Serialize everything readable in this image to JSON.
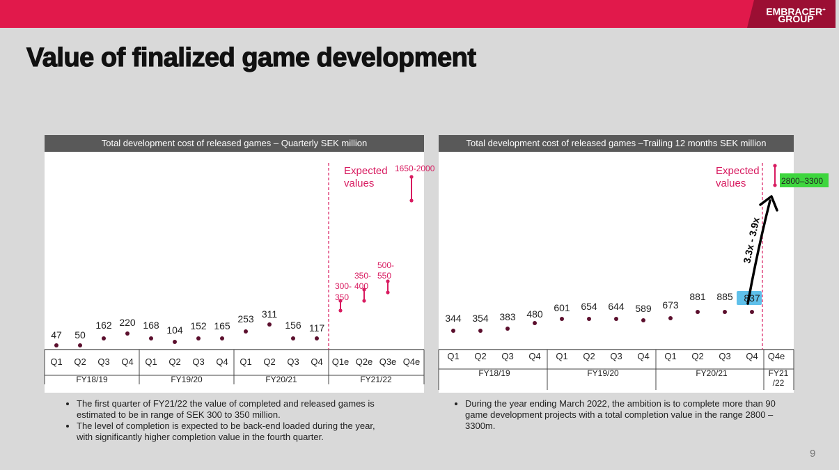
{
  "header": {
    "brand_line1": "EMBRACER",
    "brand_sup": "+",
    "brand_line2": "GROUP"
  },
  "page_title": "Value of finalized game development",
  "page_number": "9",
  "colors": {
    "accent": "#e1194b",
    "dot": "#5b0f2d",
    "expected": "#d81b60",
    "highlight_green": "#3ed63e",
    "highlight_blue": "#5fc0ea"
  },
  "chart_data": [
    {
      "type": "scatter",
      "title": "Total development cost of released games – Quarterly SEK million",
      "points": [
        {
          "q": "Q1",
          "value": 47,
          "label": "47"
        },
        {
          "q": "Q2",
          "value": 50,
          "label": "50"
        },
        {
          "q": "Q3",
          "value": 162,
          "label": "162"
        },
        {
          "q": "Q4",
          "value": 220,
          "label": "220"
        },
        {
          "q": "Q1",
          "value": 168,
          "label": "168"
        },
        {
          "q": "Q2",
          "value": 104,
          "label": "104"
        },
        {
          "q": "Q3",
          "value": 152,
          "label": "152"
        },
        {
          "q": "Q4",
          "value": 165,
          "label": "165"
        },
        {
          "q": "Q1",
          "value": 253,
          "label": "253"
        },
        {
          "q": "Q2",
          "value": 311,
          "label": "311"
        },
        {
          "q": "Q3",
          "value": 156,
          "label": "156"
        },
        {
          "q": "Q4",
          "value": 117,
          "label": "117"
        }
      ],
      "expected_ranges": [
        {
          "q": "Q1e",
          "low": 300,
          "high": 350,
          "label_line1": "300-",
          "label_line2": "350"
        },
        {
          "q": "Q2e",
          "low": 350,
          "high": 400,
          "label_line1": "350-",
          "label_line2": "400"
        },
        {
          "q": "Q3e",
          "low": 500,
          "high": 550,
          "label_line1": "500-",
          "label_line2": "550"
        },
        {
          "q": "Q4e",
          "low": 1650,
          "high": 2000,
          "label_line1": "1650-2000",
          "label_line2": ""
        }
      ],
      "expected_label_line1": "Expected",
      "expected_label_line2": "values",
      "years": [
        "FY18/19",
        "FY19/20",
        "FY20/21",
        "FY21/22"
      ]
    },
    {
      "type": "scatter",
      "title": "Total development cost of released games –Trailing 12 months SEK million",
      "points": [
        {
          "q": "Q1",
          "value": 344,
          "label": "344"
        },
        {
          "q": "Q2",
          "value": 354,
          "label": "354"
        },
        {
          "q": "Q3",
          "value": 383,
          "label": "383"
        },
        {
          "q": "Q4",
          "value": 480,
          "label": "480"
        },
        {
          "q": "Q1",
          "value": 601,
          "label": "601"
        },
        {
          "q": "Q2",
          "value": 654,
          "label": "654"
        },
        {
          "q": "Q3",
          "value": 644,
          "label": "644"
        },
        {
          "q": "Q4",
          "value": 589,
          "label": "589"
        },
        {
          "q": "Q1",
          "value": 673,
          "label": "673"
        },
        {
          "q": "Q2",
          "value": 881,
          "label": "881"
        },
        {
          "q": "Q3",
          "value": 885,
          "label": "885"
        },
        {
          "q": "Q4",
          "value": 837,
          "label": "837"
        }
      ],
      "expected_range": {
        "q": "Q4e",
        "low": 2800,
        "high": 3300,
        "label": "2800–3300"
      },
      "expected_label_line1": "Expected",
      "expected_label_line2": "values",
      "annotation": "3.3x - 3.9x",
      "years": [
        "FY18/19",
        "FY19/20",
        "FY20/21"
      ],
      "last_year_line1": "FY21",
      "last_year_line2": "/22"
    }
  ],
  "bullets_left": [
    "The first quarter of FY21/22 the value of completed and released games is estimated to be in range of SEK 300 to 350 million.",
    "The level of completion is expected to be back-end loaded during the year, with significantly higher completion value in the fourth quarter."
  ],
  "bullets_right": [
    "During the year ending March 2022, the ambition is to complete more than 90 game development projects with a total completion value in the range 2800 – 3300m."
  ]
}
